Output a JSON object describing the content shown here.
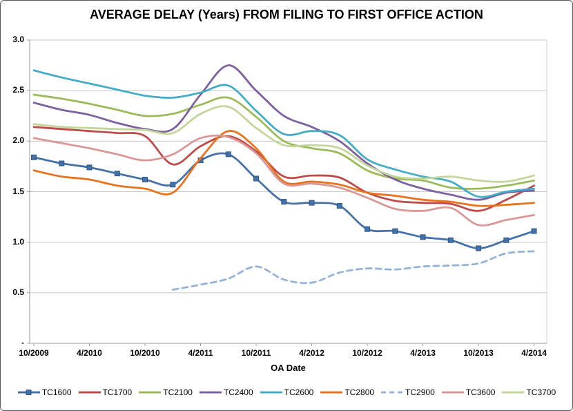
{
  "chart": {
    "title": "AVERAGE DELAY (Years) FROM FILING TO FIRST OFFICE ACTION",
    "x_axis_title": "OA Date"
  },
  "chart_data": {
    "type": "line",
    "title": "AVERAGE DELAY (Years) FROM FILING TO FIRST OFFICE ACTION",
    "xlabel": "OA Date",
    "ylabel": "",
    "ylim": [
      0,
      3.0
    ],
    "grid": true,
    "legend_position": "bottom",
    "y_ticks": [
      {
        "value": 3.0,
        "label": "3.0"
      },
      {
        "value": 2.5,
        "label": "2.5"
      },
      {
        "value": 2.0,
        "label": "2.0"
      },
      {
        "value": 1.5,
        "label": "1.5"
      },
      {
        "value": 1.0,
        "label": "1.0"
      },
      {
        "value": 0.5,
        "label": "0.5"
      },
      {
        "value": 0.0,
        "label": "-"
      }
    ],
    "x_ticks": [
      {
        "month": 0,
        "label": "10/2009"
      },
      {
        "month": 6,
        "label": "4/2010"
      },
      {
        "month": 12,
        "label": "10/2010"
      },
      {
        "month": 18,
        "label": "4/2011"
      },
      {
        "month": 24,
        "label": "10/2011"
      },
      {
        "month": 30,
        "label": "4/2012"
      },
      {
        "month": 36,
        "label": "10/2012"
      },
      {
        "month": 42,
        "label": "4/2013"
      },
      {
        "month": 48,
        "label": "10/2013"
      },
      {
        "month": 54,
        "label": "4/2014"
      }
    ],
    "x_months_span": 54,
    "sample_months": [
      0,
      3,
      6,
      9,
      12,
      15,
      18,
      21,
      24,
      27,
      30,
      33,
      36,
      39,
      42,
      45,
      48,
      51,
      54
    ],
    "sample_labels": [
      "10/2009",
      "1/2010",
      "4/2010",
      "7/2010",
      "10/2010",
      "1/2011",
      "4/2011",
      "7/2011",
      "10/2011",
      "1/2012",
      "4/2012",
      "7/2012",
      "10/2012",
      "1/2013",
      "4/2013",
      "7/2013",
      "10/2013",
      "1/2014",
      "4/2014"
    ],
    "series": [
      {
        "name": "TC1600",
        "color": "#4472A8",
        "dashed": false,
        "markers": true,
        "values": [
          1.84,
          1.78,
          1.74,
          1.68,
          1.62,
          1.57,
          1.81,
          1.87,
          1.63,
          1.4,
          1.39,
          1.36,
          1.13,
          1.11,
          1.05,
          1.02,
          0.94,
          1.02,
          1.11
        ]
      },
      {
        "name": "TC1700",
        "color": "#BE4B48",
        "dashed": false,
        "markers": false,
        "values": [
          2.14,
          2.12,
          2.1,
          2.08,
          2.05,
          1.77,
          1.95,
          2.05,
          1.9,
          1.65,
          1.66,
          1.64,
          1.49,
          1.41,
          1.39,
          1.38,
          1.31,
          1.42,
          1.56
        ]
      },
      {
        "name": "TC2100",
        "color": "#9BBB59",
        "dashed": false,
        "markers": false,
        "values": [
          2.46,
          2.42,
          2.37,
          2.31,
          2.25,
          2.27,
          2.36,
          2.43,
          2.24,
          2.0,
          1.93,
          1.88,
          1.71,
          1.63,
          1.61,
          1.54,
          1.53,
          1.56,
          1.61
        ]
      },
      {
        "name": "TC2400",
        "color": "#7D60A0",
        "dashed": false,
        "markers": false,
        "values": [
          2.38,
          2.31,
          2.26,
          2.18,
          2.12,
          2.12,
          2.46,
          2.75,
          2.5,
          2.25,
          2.14,
          2.0,
          1.78,
          1.62,
          1.53,
          1.47,
          1.42,
          1.49,
          1.51
        ]
      },
      {
        "name": "TC2600",
        "color": "#45ACC5",
        "dashed": false,
        "markers": false,
        "values": [
          2.7,
          2.63,
          2.57,
          2.51,
          2.45,
          2.43,
          2.48,
          2.55,
          2.3,
          2.07,
          2.1,
          2.06,
          1.82,
          1.72,
          1.65,
          1.6,
          1.45,
          1.5,
          1.53
        ]
      },
      {
        "name": "TC2800",
        "color": "#E8731C",
        "dashed": false,
        "markers": false,
        "values": [
          1.71,
          1.65,
          1.62,
          1.56,
          1.53,
          1.49,
          1.83,
          2.1,
          1.93,
          1.6,
          1.6,
          1.57,
          1.49,
          1.46,
          1.42,
          1.4,
          1.36,
          1.37,
          1.39
        ]
      },
      {
        "name": "TC2900",
        "color": "#95B3D7",
        "dashed": true,
        "markers": false,
        "values": [
          null,
          null,
          null,
          null,
          null,
          0.53,
          0.58,
          0.64,
          0.76,
          0.63,
          0.6,
          0.7,
          0.74,
          0.73,
          0.76,
          0.77,
          0.79,
          0.89,
          0.91
        ]
      },
      {
        "name": "TC3600",
        "color": "#D99795",
        "dashed": false,
        "markers": false,
        "values": [
          2.03,
          1.98,
          1.93,
          1.87,
          1.81,
          1.87,
          2.03,
          2.04,
          1.88,
          1.58,
          1.58,
          1.54,
          1.44,
          1.33,
          1.31,
          1.34,
          1.17,
          1.22,
          1.27
        ]
      },
      {
        "name": "TC3700",
        "color": "#C3D69B",
        "dashed": false,
        "markers": false,
        "values": [
          2.17,
          2.14,
          2.13,
          2.12,
          2.11,
          2.08,
          2.27,
          2.34,
          2.13,
          1.96,
          1.96,
          1.93,
          1.76,
          1.65,
          1.63,
          1.65,
          1.61,
          1.6,
          1.66
        ]
      }
    ],
    "colors": {
      "gridline": "#C6C6C6",
      "axis_line": "#9B9B9B",
      "plot_border": "#D2D2D2",
      "marker_stroke": "#2E5684"
    }
  }
}
